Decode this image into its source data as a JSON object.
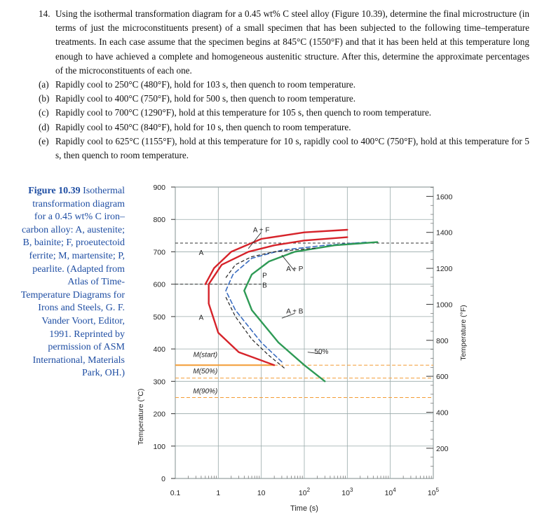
{
  "problem": {
    "number": "14.",
    "stem": "Using the isothermal transformation diagram for a 0.45 wt% C steel alloy (Figure 10.39), determine the final microstructure (in terms of just the microconstituents present) of a small specimen that has been subjected to the following time–temperature treatments. In each case assume that the specimen begins at 845°C (1550°F) and that it has been held at this temperature long enough to have achieved a complete and homogeneous austenitic structure. After this, determine the approximate percentages of the microconstituents of each one.",
    "parts": [
      {
        "label": "(a)",
        "text": "Rapidly cool to 250°C (480°F), hold for 103 s, then quench to room temperature."
      },
      {
        "label": "(b)",
        "text": "Rapidly cool to 400°C (750°F), hold for 500 s, then quench to room temperature."
      },
      {
        "label": "(c)",
        "text": "Rapidly cool to 700°C (1290°F), hold at this temperature for 105 s, then quench to room temperature."
      },
      {
        "label": "(d)",
        "text": "Rapidly cool to 450°C (840°F), hold for 10 s, then quench to room temperature."
      },
      {
        "label": "(e)",
        "text": "Rapidly cool to 625°C (1155°F), hold at this temperature for 10 s, rapidly cool to 400°C (750°F), hold at this temperature for 5 s, then quench to room temperature."
      }
    ]
  },
  "caption": {
    "figure_label": "Figure 10.39",
    "text": "Isothermal transformation diagram for a 0.45 wt% C iron–carbon alloy: A, austenite; B, bainite; F, proeutectoid ferrite; M, martensite; P, pearlite. (Adapted from Atlas of Time-Temperature Diagrams for Irons and Steels, G. F. Vander Voort, Editor, 1991. Reprinted by permission of ASM International, Materials Park, OH.)"
  },
  "chart_data": {
    "type": "line",
    "xlabel": "Time (s)",
    "ylabel_left": "Temperature (°C)",
    "ylabel_right": "Temperature (°F)",
    "x_scale": "log",
    "xlim": [
      0.1,
      100000
    ],
    "x_ticks": [
      "0.1",
      "1",
      "10",
      "10^2",
      "10^3",
      "10^4",
      "10^5"
    ],
    "ylim": [
      0,
      900
    ],
    "y_ticks_left": [
      0,
      100,
      200,
      300,
      400,
      500,
      600,
      700,
      800,
      900
    ],
    "y_ticks_right": [
      200,
      400,
      600,
      800,
      1000,
      1200,
      1400,
      1600
    ],
    "colors": {
      "ferrite_start": "#d6232a",
      "start": "#d6232a",
      "fifty": "#3a6cc0",
      "finish": "#2e9a55",
      "ms": "#f39c34"
    },
    "region_labels": [
      "A",
      "A + F",
      "A + P",
      "P",
      "B",
      "A + B",
      "A",
      "50%",
      "M(start)",
      "M(50%)",
      "M(90%)"
    ],
    "series": [
      {
        "name": "ferrite start",
        "points": [
          [
            0.5,
            600
          ],
          [
            0.8,
            650
          ],
          [
            2,
            700
          ],
          [
            10,
            740
          ],
          [
            100,
            760
          ],
          [
            1000,
            768
          ]
        ]
      },
      {
        "name": "start",
        "points": [
          [
            20,
            350
          ],
          [
            3,
            390
          ],
          [
            1,
            450
          ],
          [
            0.6,
            540
          ],
          [
            0.6,
            600
          ],
          [
            1.2,
            660
          ],
          [
            5,
            700
          ],
          [
            20,
            720
          ],
          [
            100,
            735
          ],
          [
            1000,
            745
          ]
        ]
      },
      {
        "name": "50%",
        "points": [
          [
            30,
            360
          ],
          [
            10,
            420
          ],
          [
            2.5,
            520
          ],
          [
            1.5,
            580
          ],
          [
            2.2,
            630
          ],
          [
            6,
            680
          ],
          [
            30,
            705
          ],
          [
            300,
            720
          ],
          [
            3000,
            730
          ]
        ]
      },
      {
        "name": "finish",
        "points": [
          [
            300,
            300
          ],
          [
            100,
            350
          ],
          [
            25,
            420
          ],
          [
            6,
            520
          ],
          [
            4,
            580
          ],
          [
            6,
            630
          ],
          [
            15,
            670
          ],
          [
            60,
            700
          ],
          [
            500,
            720
          ],
          [
            5000,
            730
          ]
        ]
      }
    ],
    "horizontal_lines": [
      {
        "name": "M(start)",
        "y": 350
      },
      {
        "name": "M(50%)",
        "y": 310
      },
      {
        "name": "M(90%)",
        "y": 250
      },
      {
        "name": "eutectoid",
        "y": 727
      }
    ]
  }
}
